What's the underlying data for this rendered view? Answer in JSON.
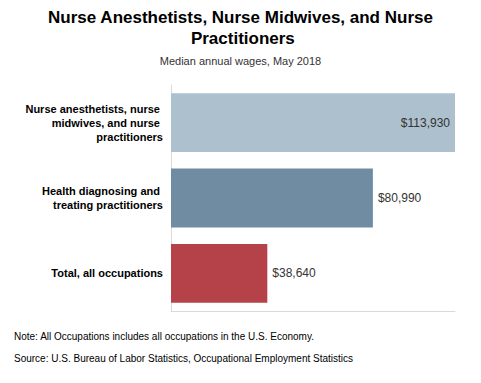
{
  "chart_data": {
    "type": "bar",
    "title": "Nurse Anesthetists, Nurse Midwives, and Nurse Practitioners",
    "subtitle": "Median annual wages, May 2018",
    "orientation": "horizontal",
    "categories": [
      "Nurse anesthetists, nurse midwives, and nurse practitioners",
      "Health diagnosing and treating practitioners",
      "Total, all occupations"
    ],
    "values": [
      113930,
      80990,
      38640
    ],
    "value_labels": [
      "$113,930",
      "$80,990",
      "$38,640"
    ],
    "colors": [
      "#adc0cd",
      "#6f8ca3",
      "#b54248"
    ],
    "xlim": [
      0,
      113930
    ],
    "data_labels": true,
    "tick_labels": "y",
    "grid": false,
    "notes": [
      "Note: All Occupations includes all occupations in the U.S. Economy.",
      "Source: U.S. Bureau of Labor Statistics, Occupational Employment Statistics"
    ]
  }
}
